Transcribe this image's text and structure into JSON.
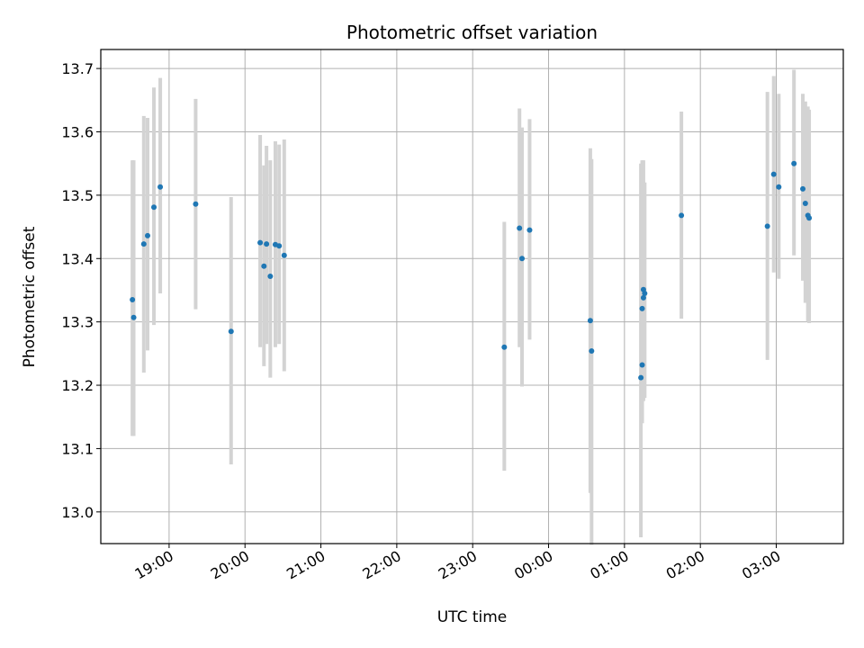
{
  "chart_data": {
    "type": "scatter",
    "title": "Photometric offset variation",
    "xlabel": "UTC time",
    "ylabel": "Photometric offset",
    "xlim": [
      "18:06",
      "03:53"
    ],
    "ylim": [
      12.95,
      13.73
    ],
    "grid": true,
    "x_ticks": [
      "19:00",
      "20:00",
      "21:00",
      "22:00",
      "23:00",
      "00:00",
      "01:00",
      "02:00",
      "03:00"
    ],
    "y_ticks": [
      "13.0",
      "13.1",
      "13.2",
      "13.3",
      "13.4",
      "13.5",
      "13.6",
      "13.7"
    ],
    "colors": {
      "point": "#1f77b4",
      "errorbar": "#d3d3d3",
      "grid": "#b0b0b0"
    },
    "series": [
      {
        "x": [
          "18:31",
          "18:32",
          "18:40",
          "18:43",
          "18:48",
          "18:53",
          "19:21",
          "19:49",
          "20:12",
          "20:15",
          "20:17",
          "20:20",
          "20:24",
          "20:27",
          "20:31",
          "23:25",
          "23:37",
          "23:39",
          "23:45",
          "00:33",
          "00:34",
          "01:13",
          "01:14",
          "01:14",
          "01:15",
          "01:15",
          "01:16",
          "01:45",
          "02:53",
          "02:58",
          "03:02",
          "03:14",
          "03:21",
          "03:23",
          "03:25",
          "03:26"
        ],
        "y": [
          13.335,
          13.307,
          13.423,
          13.436,
          13.481,
          13.513,
          13.486,
          13.285,
          13.425,
          13.388,
          13.423,
          13.372,
          13.422,
          13.42,
          13.405,
          13.26,
          13.448,
          13.4,
          13.445,
          13.302,
          13.254,
          13.212,
          13.232,
          13.321,
          13.351,
          13.338,
          13.345,
          13.468,
          13.451,
          13.533,
          13.513,
          13.55,
          13.51,
          13.487,
          13.468,
          13.464
        ],
        "err_low": [
          13.12,
          13.12,
          13.22,
          13.255,
          13.295,
          13.345,
          13.32,
          13.075,
          13.26,
          13.23,
          13.265,
          13.212,
          13.26,
          13.265,
          13.222,
          13.065,
          13.26,
          13.198,
          13.272,
          13.03,
          12.948,
          12.96,
          13.14,
          13.145,
          13.18,
          13.175,
          13.18,
          13.305,
          13.24,
          13.378,
          13.368,
          13.405,
          13.365,
          13.33,
          13.3,
          13.298
        ],
        "err_high": [
          13.555,
          13.555,
          13.625,
          13.622,
          13.67,
          13.685,
          13.652,
          13.497,
          13.595,
          13.547,
          13.578,
          13.555,
          13.585,
          13.58,
          13.588,
          13.458,
          13.637,
          13.607,
          13.62,
          13.574,
          13.557,
          13.55,
          13.555,
          13.52,
          13.555,
          13.5,
          13.52,
          13.632,
          13.663,
          13.688,
          13.66,
          13.698,
          13.66,
          13.648,
          13.64,
          13.635
        ]
      }
    ]
  }
}
